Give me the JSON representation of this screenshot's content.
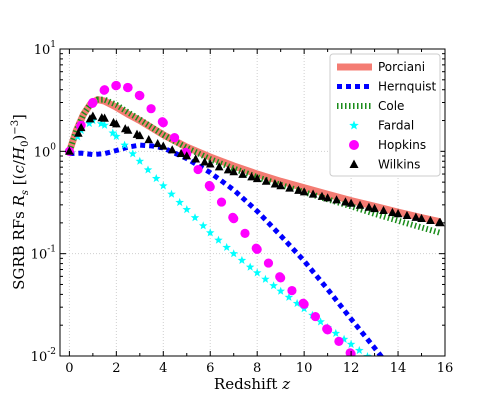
{
  "chart_data": {
    "type": "line",
    "xlabel": "Redshift z",
    "ylabel": "SGRB RFs R_s [(c/H_0)^-3]",
    "xlim": [
      -0.4,
      16
    ],
    "ylim_log10": [
      -2,
      1
    ],
    "yscale": "log",
    "x_ticks": [
      0,
      2,
      4,
      6,
      8,
      10,
      12,
      14,
      16
    ],
    "x_tick_labels": [
      "0",
      "2",
      "4",
      "6",
      "8",
      "10",
      "12",
      "14",
      "16"
    ],
    "y_tick_labels": [
      {
        "value": 10,
        "mantissa": "10",
        "exp": "1"
      },
      {
        "value": 1,
        "mantissa": "10",
        "exp": "0"
      },
      {
        "value": 0.1,
        "mantissa": "10",
        "exp": "-1"
      },
      {
        "value": 0.01,
        "mantissa": "10",
        "exp": "-2"
      }
    ],
    "grid": true,
    "legend_position": "top-right",
    "series": [
      {
        "name": "Porciani",
        "color": "#f47c73",
        "style": "thick-line",
        "x": [
          0,
          0.3,
          0.6,
          0.9,
          1.2,
          1.5,
          2,
          2.5,
          3,
          4,
          5,
          6,
          7,
          8,
          9,
          10,
          11,
          12,
          13,
          14,
          15,
          15.8
        ],
        "y": [
          1.0,
          1.6,
          2.3,
          2.9,
          3.2,
          3.1,
          2.7,
          2.3,
          2.0,
          1.45,
          1.1,
          0.88,
          0.72,
          0.6,
          0.51,
          0.44,
          0.38,
          0.33,
          0.29,
          0.255,
          0.225,
          0.205
        ]
      },
      {
        "name": "Hernquist",
        "color": "#0000ff",
        "style": "square-dashes",
        "x": [
          0,
          0.5,
          1,
          1.5,
          2,
          2.5,
          3,
          3.5,
          4,
          5,
          6,
          7,
          8,
          9,
          10,
          11,
          12,
          13,
          13.6
        ],
        "y": [
          0.95,
          0.96,
          0.93,
          0.95,
          1.02,
          1.1,
          1.15,
          1.13,
          1.08,
          0.85,
          0.62,
          0.42,
          0.26,
          0.15,
          0.085,
          0.045,
          0.023,
          0.012,
          0.008
        ]
      },
      {
        "name": "Cole",
        "color": "#1a8c1a",
        "style": "vertical-ticks",
        "x": [
          0,
          0.3,
          0.6,
          0.9,
          1.2,
          1.5,
          2,
          2.5,
          3,
          4,
          5,
          6,
          7,
          8,
          9,
          10,
          11,
          12,
          13,
          14,
          15,
          15.8
        ],
        "y": [
          1.0,
          1.6,
          2.3,
          2.9,
          3.2,
          3.2,
          2.85,
          2.4,
          2.05,
          1.45,
          1.08,
          0.84,
          0.68,
          0.56,
          0.47,
          0.4,
          0.34,
          0.29,
          0.245,
          0.21,
          0.18,
          0.16
        ]
      },
      {
        "name": "Fardal",
        "color": "#00ffff",
        "style": "star-markers",
        "x": [
          0,
          0.5,
          1,
          1.5,
          2,
          3,
          4,
          5,
          6,
          7,
          8,
          9,
          10,
          11,
          12,
          12.8
        ],
        "y": [
          1.0,
          1.6,
          2.0,
          1.8,
          1.4,
          0.8,
          0.46,
          0.27,
          0.16,
          0.1,
          0.065,
          0.043,
          0.029,
          0.019,
          0.013,
          0.0095
        ]
      },
      {
        "name": "Hopkins",
        "color": "#ff00ff",
        "style": "circle-markers",
        "x": [
          0,
          0.5,
          1,
          1.5,
          2,
          2.5,
          3,
          4,
          5,
          6,
          7,
          8,
          9,
          10,
          11,
          12,
          13
        ],
        "y": [
          1.0,
          1.8,
          3.0,
          4.0,
          4.4,
          4.2,
          3.5,
          1.9,
          0.95,
          0.45,
          0.22,
          0.11,
          0.058,
          0.032,
          0.018,
          0.0105,
          0.0065
        ]
      },
      {
        "name": "Wilkins",
        "color": "#000000",
        "style": "triangle-markers",
        "x": [
          0,
          0.5,
          1,
          1.5,
          2,
          2.5,
          3,
          4,
          5,
          6,
          7,
          8,
          9,
          10,
          11,
          12,
          13,
          14,
          15,
          15.8
        ],
        "y": [
          1.0,
          1.7,
          2.2,
          2.1,
          1.85,
          1.6,
          1.42,
          1.12,
          0.9,
          0.75,
          0.63,
          0.54,
          0.46,
          0.4,
          0.35,
          0.31,
          0.275,
          0.245,
          0.22,
          0.2
        ]
      }
    ]
  }
}
